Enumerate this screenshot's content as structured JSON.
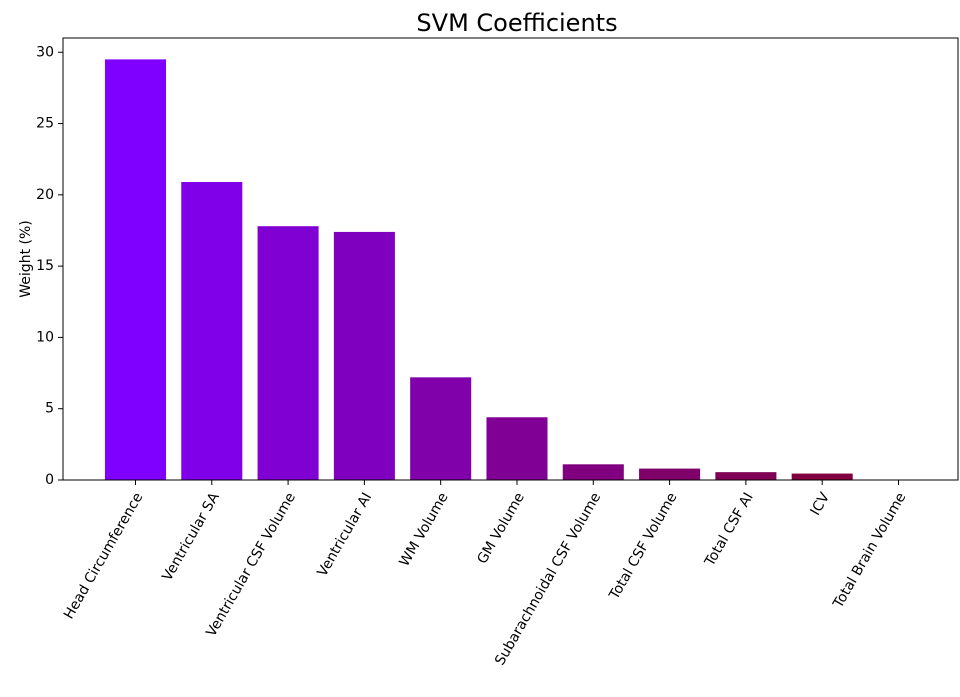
{
  "chart_data": {
    "type": "bar",
    "title": "SVM Coefficients",
    "y_label": "Weight (%)",
    "categories": [
      "Head Circumference",
      "Ventricular SA",
      "Ventricular CSF Volume",
      "Ventricular AI",
      "WM Volume",
      "GM Volume",
      "Subarachnoidal CSF Volume",
      "Total CSF Volume",
      "Total CSF AI",
      "ICV",
      "Total Brain Volume"
    ],
    "values": [
      29.5,
      20.9,
      17.8,
      17.4,
      7.2,
      4.4,
      1.1,
      0.8,
      0.55,
      0.45,
      0.0
    ],
    "colors": [
      "#8000ff",
      "#8000ea",
      "#8000d4",
      "#8000bf",
      "#8000aa",
      "#800095",
      "#80007f",
      "#80006a",
      "#800055",
      "#800040",
      "#80002a"
    ],
    "ylim": [
      0,
      31
    ],
    "yticks": [
      0,
      5,
      10,
      15,
      20,
      25,
      30
    ],
    "grid": false
  }
}
